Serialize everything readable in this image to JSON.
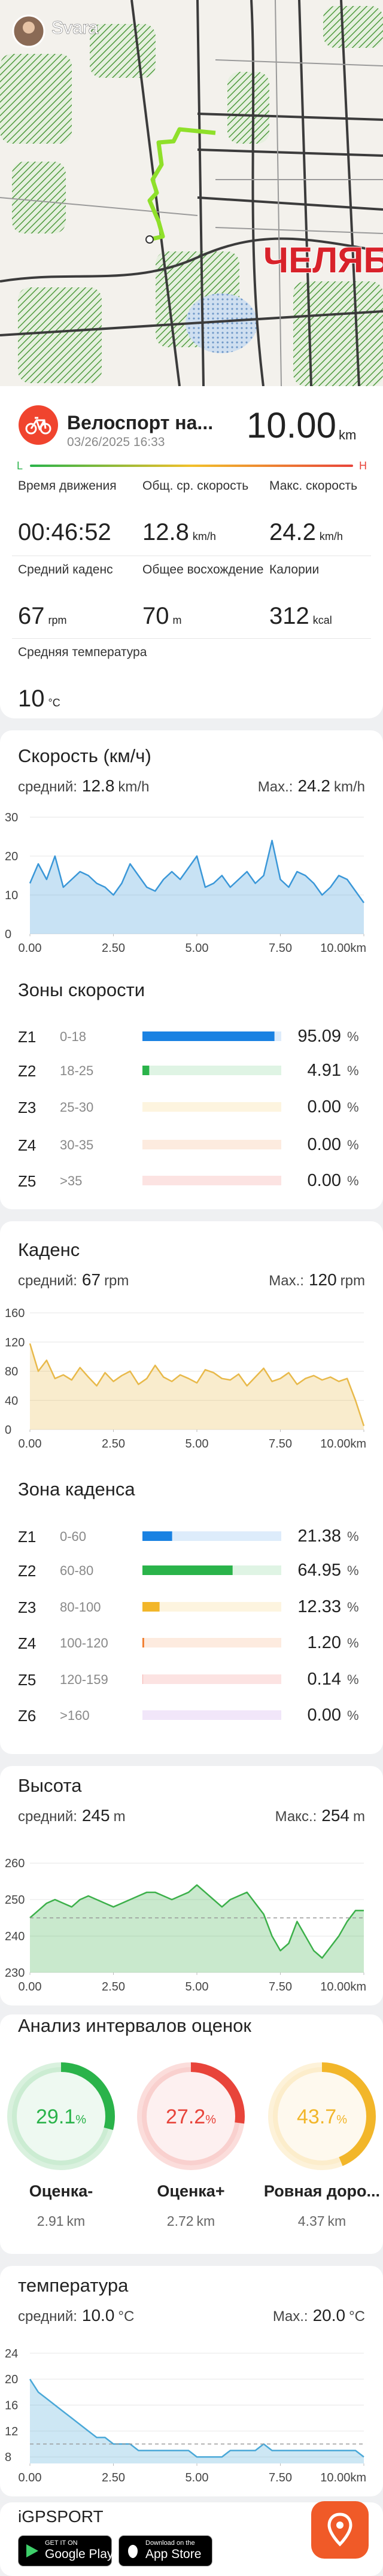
{
  "map": {
    "user": "Svara",
    "city_label": "ЧЕЛЯБИ"
  },
  "activity": {
    "title": "Велоспорт на...",
    "date": "03/26/2025 16:33",
    "distance": "10.00",
    "distance_unit": "km",
    "scale_low": "L",
    "scale_high": "H"
  },
  "stats": [
    {
      "label": "Время движения",
      "value": "00:46:52"
    },
    {
      "label": "Общ. ср. скорость",
      "value": "12.8",
      "unit": "km/h"
    },
    {
      "label": "Макс. скорость",
      "value": "24.2",
      "unit": "km/h"
    },
    {
      "label": "Средний каденс",
      "value": "67",
      "unit": "rpm"
    },
    {
      "label": "Общее восхождение",
      "value": "70",
      "unit": "m"
    },
    {
      "label": "Калории",
      "value": "312",
      "unit": "kcal"
    },
    {
      "label": "Средняя температура",
      "value": "10",
      "unit": "°C"
    }
  ],
  "speed": {
    "title": "Скорость (км/ч)",
    "avg_label": "средний:",
    "avg": "12.8",
    "avg_unit": "km/h",
    "max_label": "Max.:",
    "max": "24.2",
    "max_unit": "km/h",
    "chart": {
      "type": "area",
      "color": "#3a97d8",
      "x": [
        0,
        0.25,
        0.5,
        0.75,
        1,
        1.25,
        1.5,
        1.75,
        2,
        2.25,
        2.5,
        2.75,
        3,
        3.25,
        3.5,
        3.75,
        4,
        4.25,
        4.5,
        4.75,
        5,
        5.25,
        5.5,
        5.75,
        6,
        6.25,
        6.5,
        6.75,
        7,
        7.25,
        7.5,
        7.75,
        8,
        8.25,
        8.5,
        8.75,
        9,
        9.25,
        9.5,
        9.75,
        10
      ],
      "values": [
        13,
        18,
        14,
        20,
        12,
        14,
        16,
        15,
        13,
        12,
        10,
        13,
        18,
        15,
        12,
        11,
        14,
        16,
        14,
        17,
        20,
        12,
        13,
        15,
        12,
        14,
        16,
        13,
        15,
        24,
        14,
        12,
        16,
        15,
        13,
        10,
        12,
        15,
        14,
        11,
        8
      ],
      "xlim": [
        0,
        10
      ],
      "xticks": [
        {
          "value": 0,
          "label": "0.00"
        },
        {
          "value": 2.5,
          "label": "2.50"
        },
        {
          "value": 5,
          "label": "5.00"
        },
        {
          "value": 7.5,
          "label": "7.50"
        },
        {
          "value": 10,
          "label": "10.00km"
        }
      ],
      "ylim": [
        0,
        30
      ],
      "yticks": [
        0,
        10,
        20,
        30
      ]
    }
  },
  "speed_zones": {
    "title": "Зоны скорости",
    "unit": "%",
    "names": [
      "Z1",
      "Z2",
      "Z3",
      "Z4",
      "Z5"
    ],
    "ranges": [
      "0-18",
      "18-25",
      "25-30",
      "30-35",
      ">35"
    ],
    "values": [
      95.09,
      4.91,
      0,
      0,
      0
    ],
    "value_labels": [
      "95.09",
      "4.91",
      "0.00",
      "0.00",
      "0.00"
    ],
    "colors": [
      "#1a82e2",
      "#2ab34a",
      "#f2b62a",
      "#f07a2a",
      "#e8443a"
    ]
  },
  "cadence": {
    "title": "Каденс",
    "avg_label": "средний:",
    "avg": "67",
    "avg_unit": "rpm",
    "max_label": "Max.:",
    "max": "120",
    "max_unit": "rpm",
    "chart": {
      "type": "area",
      "color": "#e8b94a",
      "x": [
        0,
        0.25,
        0.5,
        0.75,
        1,
        1.25,
        1.5,
        1.75,
        2,
        2.25,
        2.5,
        2.75,
        3,
        3.25,
        3.5,
        3.75,
        4,
        4.25,
        4.5,
        4.75,
        5,
        5.25,
        5.5,
        5.75,
        6,
        6.25,
        6.5,
        6.75,
        7,
        7.25,
        7.5,
        7.75,
        8,
        8.25,
        8.5,
        8.75,
        9,
        9.25,
        9.5,
        9.75,
        10
      ],
      "values": [
        118,
        80,
        95,
        70,
        75,
        68,
        85,
        72,
        60,
        78,
        66,
        74,
        80,
        62,
        70,
        88,
        72,
        66,
        75,
        70,
        64,
        82,
        78,
        70,
        68,
        76,
        60,
        72,
        84,
        66,
        70,
        78,
        62,
        70,
        74,
        68,
        72,
        66,
        70,
        40,
        5
      ],
      "xlim": [
        0,
        10
      ],
      "xticks": [
        {
          "value": 0,
          "label": "0.00"
        },
        {
          "value": 2.5,
          "label": "2.50"
        },
        {
          "value": 5,
          "label": "5.00"
        },
        {
          "value": 7.5,
          "label": "7.50"
        },
        {
          "value": 10,
          "label": "10.00km"
        }
      ],
      "ylim": [
        0,
        160
      ],
      "yticks": [
        0,
        40,
        80,
        120,
        160
      ]
    }
  },
  "cadence_zones": {
    "title": "Зона каденса",
    "unit": "%",
    "names": [
      "Z1",
      "Z2",
      "Z3",
      "Z4",
      "Z5",
      "Z6"
    ],
    "ranges": [
      "0-60",
      "60-80",
      "80-100",
      "100-120",
      "120-159",
      ">160"
    ],
    "values": [
      21.38,
      64.95,
      12.33,
      1.2,
      0.14,
      0
    ],
    "value_labels": [
      "21.38",
      "64.95",
      "12.33",
      "1.20",
      "0.14",
      "0.00"
    ],
    "colors": [
      "#1a82e2",
      "#2ab34a",
      "#f2b62a",
      "#f07a2a",
      "#e8443a",
      "#a35ad8"
    ]
  },
  "altitude": {
    "title": "Высота",
    "avg_label": "средний:",
    "avg": "245",
    "avg_unit": "m",
    "max_label": "Макс.:",
    "max": "254",
    "max_unit": "m",
    "chart": {
      "type": "area",
      "color": "#3cb04a",
      "avg_line": true,
      "x": [
        0,
        0.25,
        0.5,
        0.75,
        1,
        1.25,
        1.5,
        1.75,
        2,
        2.25,
        2.5,
        2.75,
        3,
        3.25,
        3.5,
        3.75,
        4,
        4.25,
        4.5,
        4.75,
        5,
        5.25,
        5.5,
        5.75,
        6,
        6.25,
        6.5,
        6.75,
        7,
        7.25,
        7.5,
        7.75,
        8,
        8.25,
        8.5,
        8.75,
        9,
        9.25,
        9.5,
        9.75,
        10
      ],
      "values": [
        245,
        247,
        249,
        250,
        249,
        248,
        250,
        251,
        250,
        249,
        248,
        249,
        250,
        251,
        252,
        252,
        251,
        250,
        251,
        252,
        254,
        252,
        250,
        248,
        250,
        251,
        252,
        249,
        246,
        240,
        236,
        238,
        244,
        240,
        236,
        234,
        237,
        240,
        244,
        247,
        247
      ],
      "xlim": [
        0,
        10
      ],
      "xticks": [
        {
          "value": 0,
          "label": "0.00"
        },
        {
          "value": 2.5,
          "label": "2.50"
        },
        {
          "value": 5,
          "label": "5.00"
        },
        {
          "value": 7.5,
          "label": "7.50"
        },
        {
          "value": 10,
          "label": "10.00km"
        }
      ],
      "ylim": [
        230,
        262
      ],
      "yticks": [
        230,
        240,
        250,
        260
      ]
    }
  },
  "intervals": {
    "title": "Анализ интервалов оценок",
    "unit": "%",
    "distance_unit": "km",
    "names": [
      "Оценка-",
      "Оценка+",
      "Ровная доро..."
    ],
    "values": [
      29.1,
      27.2,
      43.7
    ],
    "distances": [
      "2.91",
      "2.72",
      "4.37"
    ],
    "colors": [
      "#2ab34a",
      "#e8443a",
      "#f2b62a"
    ]
  },
  "temperature": {
    "title": "температура",
    "avg_label": "средний:",
    "avg": "10.0",
    "avg_unit": "°C",
    "max_label": "Max.:",
    "max": "20.0",
    "max_unit": "°C",
    "chart": {
      "type": "area",
      "color": "#4aa8d8",
      "avg_line": true,
      "x": [
        0,
        0.25,
        0.5,
        0.75,
        1,
        1.25,
        1.5,
        1.75,
        2,
        2.25,
        2.5,
        2.75,
        3,
        3.25,
        3.5,
        3.75,
        4,
        4.25,
        4.5,
        4.75,
        5,
        5.25,
        5.5,
        5.75,
        6,
        6.25,
        6.5,
        6.75,
        7,
        7.25,
        7.5,
        7.75,
        8,
        8.25,
        8.5,
        8.75,
        9,
        9.25,
        9.5,
        9.75,
        10
      ],
      "values": [
        20,
        18,
        17,
        16,
        15,
        14,
        13,
        12,
        11,
        11,
        10,
        10,
        10,
        9,
        9,
        9,
        9,
        9,
        9,
        9,
        8,
        8,
        8,
        8,
        9,
        9,
        9,
        9,
        10,
        9,
        9,
        9,
        9,
        9,
        9,
        9,
        9,
        9,
        9,
        9,
        8
      ],
      "xlim": [
        0,
        10
      ],
      "xticks": [
        {
          "value": 0,
          "label": "0.00"
        },
        {
          "value": 2.5,
          "label": "2.50"
        },
        {
          "value": 5,
          "label": "5.00"
        },
        {
          "value": 7.5,
          "label": "7.50"
        },
        {
          "value": 10,
          "label": "10.00km"
        }
      ],
      "ylim": [
        7,
        25
      ],
      "yticks": [
        8,
        12,
        16,
        20,
        24
      ]
    }
  },
  "footer": {
    "brand": "iGPSPORT",
    "badges": [
      {
        "small": "GET IT ON",
        "big": "Google Play"
      },
      {
        "small": "Download on the",
        "big": "App Store"
      }
    ]
  }
}
